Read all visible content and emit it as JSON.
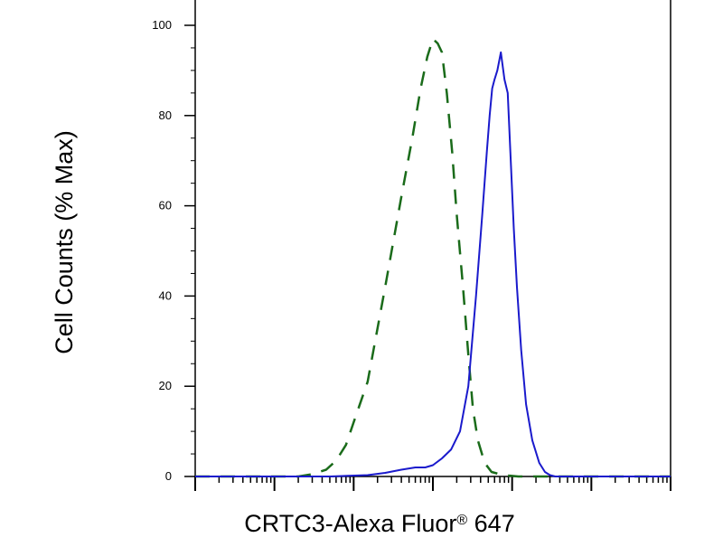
{
  "chart_data": {
    "type": "line",
    "title": "",
    "xlabel": "CRTC3-Alexa Fluor",
    "xlabel_superscript": "®",
    "xlabel_suffix": " 647",
    "ylabel": "Cell Counts (% Max)",
    "x_scale": "log",
    "xlim": [
      0.1,
      100000
    ],
    "ylim": [
      0,
      100
    ],
    "yticks": [
      0,
      20,
      40,
      60,
      80,
      100
    ],
    "grid": false,
    "legend": "none",
    "series": [
      {
        "line_style": "dashed",
        "color": "#1a6b1a",
        "x": [
          0.1,
          2,
          3,
          4.5,
          6,
          8,
          10,
          15,
          25,
          40,
          55,
          70,
          85,
          100,
          115,
          130,
          150,
          175,
          200,
          240,
          280,
          320,
          370,
          450,
          550,
          700,
          900,
          1200,
          1800,
          3000,
          10000,
          100000
        ],
        "y": [
          0,
          0,
          0.5,
          1.5,
          3.5,
          7,
          12,
          21,
          42,
          62,
          75,
          86,
          93,
          97,
          96,
          94,
          85,
          72,
          58,
          42,
          27,
          15,
          8,
          3,
          1,
          0.5,
          0.2,
          0,
          0,
          0,
          0,
          0
        ]
      },
      {
        "line_style": "solid",
        "color": "#1a1acc",
        "x": [
          0.1,
          5,
          15,
          25,
          40,
          60,
          80,
          100,
          130,
          170,
          220,
          280,
          350,
          420,
          480,
          520,
          560,
          600,
          650,
          720,
          800,
          880,
          950,
          1050,
          1150,
          1300,
          1500,
          1800,
          2200,
          2600,
          3000,
          3500,
          100000
        ],
        "y": [
          0,
          0,
          0.3,
          0.8,
          1.5,
          2,
          2,
          2.5,
          4,
          6,
          10,
          20,
          40,
          58,
          72,
          80,
          86,
          88,
          90,
          94,
          88,
          85,
          72,
          55,
          42,
          28,
          16,
          8,
          3,
          1,
          0.3,
          0,
          0
        ]
      }
    ]
  }
}
